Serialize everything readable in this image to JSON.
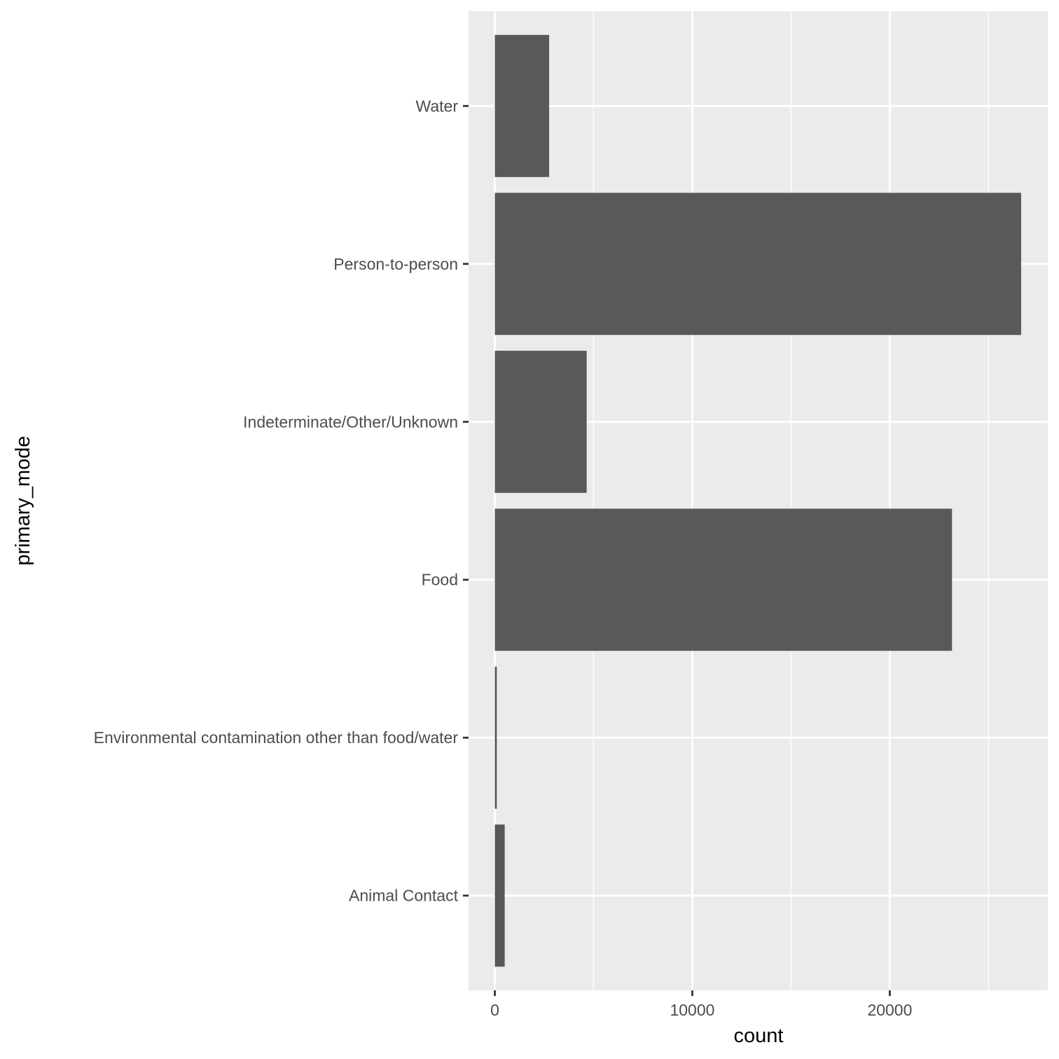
{
  "chart_data": {
    "type": "bar",
    "orientation": "horizontal",
    "categories": [
      "Animal Contact",
      "Environmental contamination other than food/water",
      "Food",
      "Indeterminate/Other/Unknown",
      "Person-to-person",
      "Water"
    ],
    "values": [
      500,
      100,
      23150,
      4650,
      26650,
      2750
    ],
    "xlabel": "count",
    "ylabel": "primary_mode",
    "xlim": [
      -1330,
      28000
    ],
    "xticks": [
      0,
      10000,
      20000
    ],
    "xtick_labels": [
      "0",
      "10000",
      "20000"
    ],
    "grid": true,
    "legend": "none",
    "colors": {
      "bar": "#595959",
      "panel_background": "#ebebeb",
      "grid_major": "#ffffff",
      "tick_label": "#4d4d4d",
      "axis_title": "#000000"
    }
  }
}
